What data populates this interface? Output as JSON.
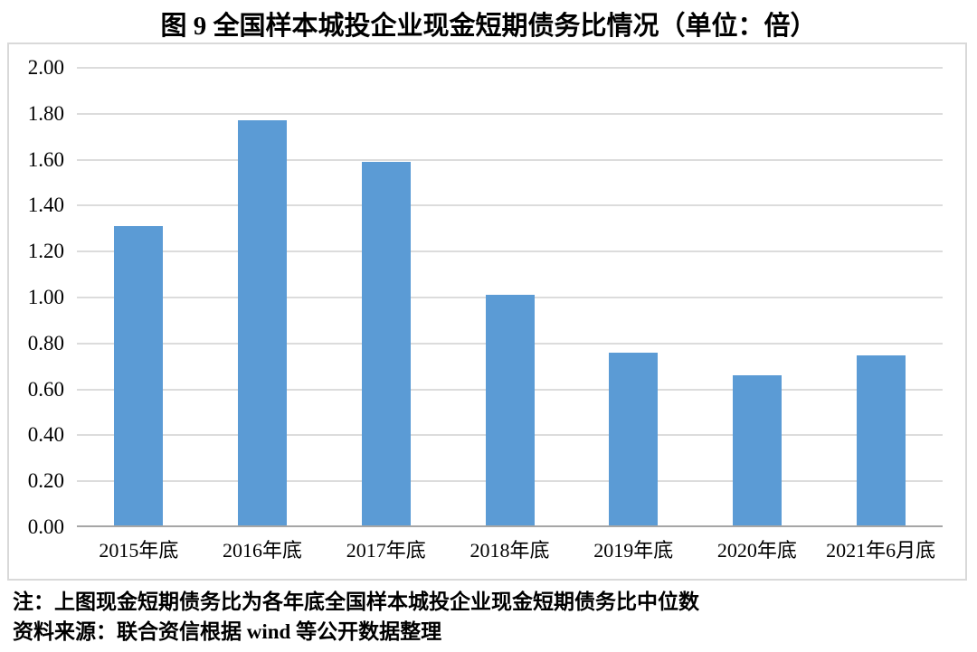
{
  "page": {
    "title": "图 9  全国样本城投企业现金短期债务比情况（单位：倍）"
  },
  "chart_data": {
    "type": "bar",
    "title": "全国样本城投企业现金短期债务比情况",
    "unit_label": "单位：倍",
    "categories": [
      "2015年底",
      "2016年底",
      "2017年底",
      "2018年底",
      "2019年底",
      "2020年底",
      "2021年6月底"
    ],
    "values": [
      1.31,
      1.77,
      1.59,
      1.01,
      0.76,
      0.66,
      0.75
    ],
    "xlabel": "",
    "ylabel": "",
    "ylim": [
      0,
      2.0
    ],
    "ytick_step": 0.2,
    "ytick_decimals": 2,
    "grid": true,
    "legend_position": "none",
    "bar_color": "#5B9BD5"
  },
  "notes": {
    "note": "注：上图现金短期债务比为各年底全国样本城投企业现金短期债务比中位数",
    "source": "资料来源：联合资信根据 wind 等公开数据整理"
  }
}
